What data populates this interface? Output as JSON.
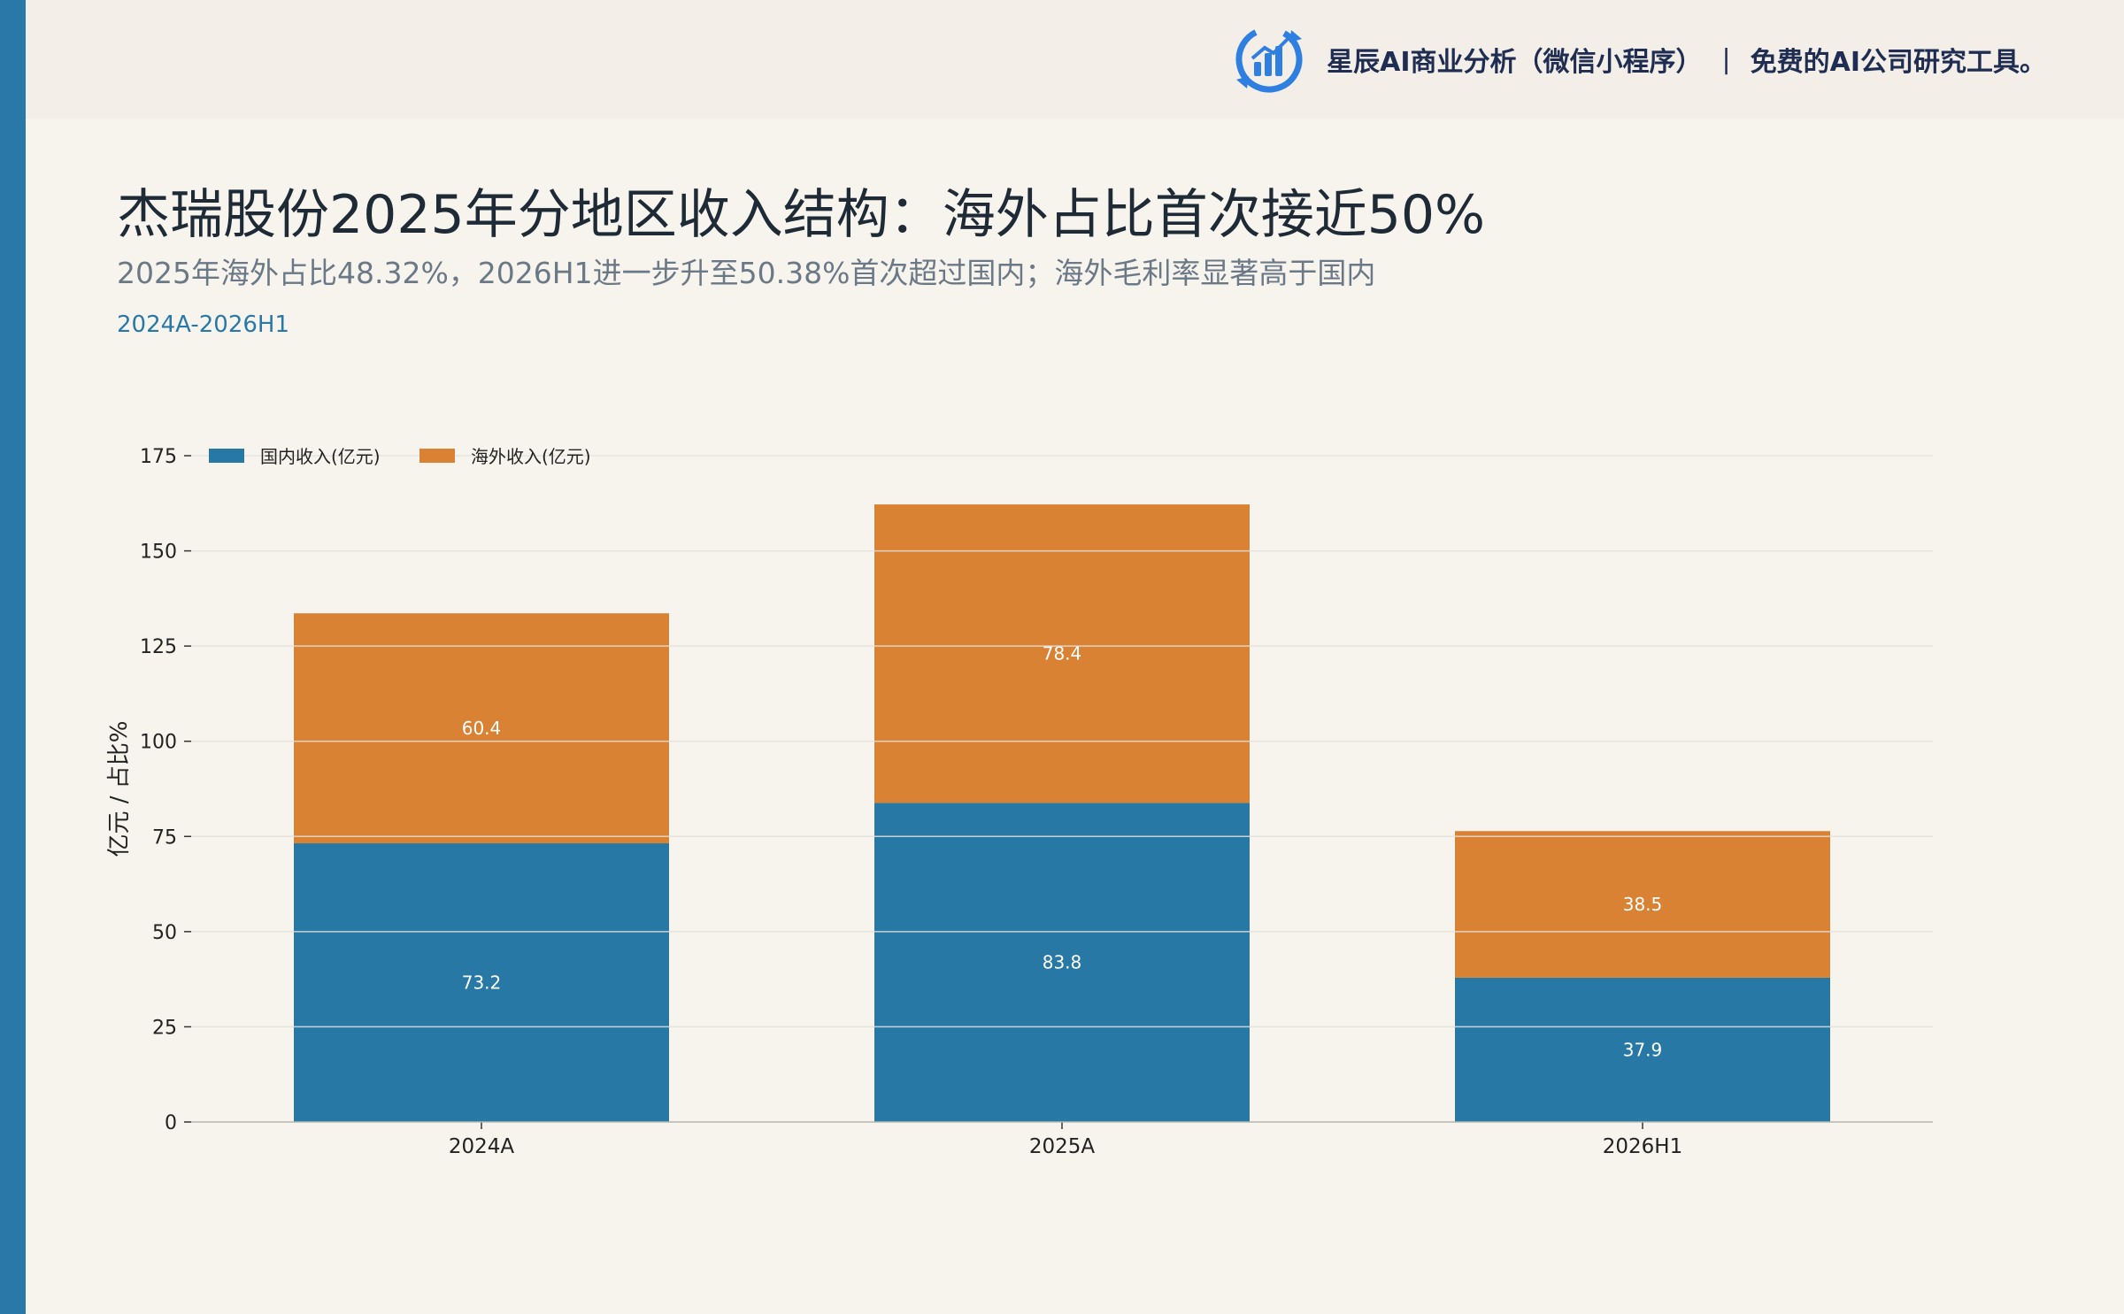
{
  "brand": {
    "name": "星辰AI商业分析（微信小程序）",
    "separator": "|",
    "tagline": "免费的AI公司研究工具。",
    "logo_icon": "bar-chart-refresh-icon"
  },
  "header": {
    "title": "杰瑞股份2025年分地区收入结构：海外占比首次接近50%",
    "subtitle": "2025年海外占比48.32%，2026H1进一步升至50.38%首次超过国内；海外毛利率显著高于国内",
    "period": "2024A-2026H1"
  },
  "colors": {
    "accent": "#2a78a8",
    "domestic": "#2878a6",
    "overseas": "#d98233",
    "background": "#f7f4ee"
  },
  "chart_data": {
    "type": "bar",
    "stacked": true,
    "categories": [
      "2024A",
      "2025A",
      "2026H1"
    ],
    "series": [
      {
        "name": "国内收入(亿元)",
        "values": [
          73.2,
          83.8,
          37.9
        ],
        "color": "#2878a6"
      },
      {
        "name": "海外收入(亿元)",
        "values": [
          60.4,
          78.4,
          38.5
        ],
        "color": "#d98233"
      }
    ],
    "ylabel": "亿元 / 占比%",
    "xlabel": "",
    "ylim": [
      0,
      175
    ],
    "yticks": [
      0,
      25,
      50,
      75,
      100,
      125,
      150,
      175
    ],
    "grid": true,
    "legend_position": "top-left"
  }
}
